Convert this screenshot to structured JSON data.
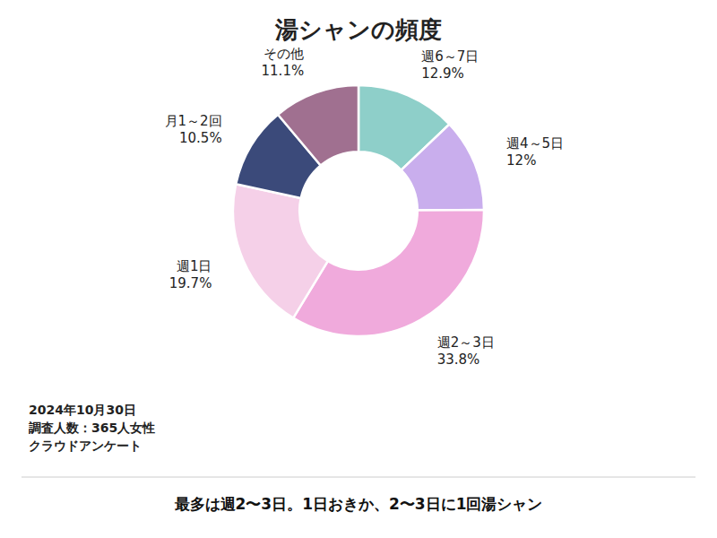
{
  "chart_data": {
    "type": "donut",
    "title": "湯シャンの頻度",
    "categories": [
      "週6～7日",
      "週4～5日",
      "週2～3日",
      "週1日",
      "月1～2回",
      "その他"
    ],
    "values": [
      12.9,
      12.0,
      33.8,
      19.7,
      10.5,
      11.1
    ],
    "value_labels": [
      "12.9%",
      "12%",
      "33.8%",
      "19.7%",
      "10.5%",
      "11.1%"
    ],
    "colors": [
      "#8ECFC9",
      "#C9AEED",
      "#F0AADC",
      "#F5D0E8",
      "#3B4A7A",
      "#A07090"
    ],
    "data_labels": true,
    "annotations": [
      "2024年10月30日",
      "調査人数：365人女性",
      "クラウドアンケート",
      "最多は週2〜3日。1日おきか、2〜3日に1回湯シャン"
    ]
  }
}
